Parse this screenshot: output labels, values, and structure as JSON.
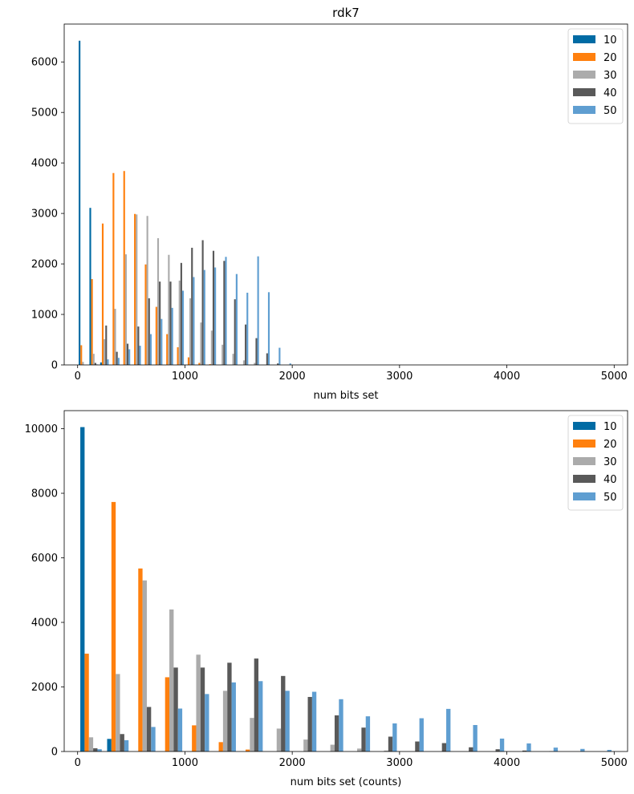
{
  "figure_title": "rdk7",
  "chart_data": [
    {
      "type": "bar",
      "title": "rdk7",
      "xlabel": "num bits set",
      "ylabel": "",
      "xlim": [
        -125,
        5125
      ],
      "ylim": [
        0,
        6750
      ],
      "xticks": [
        0,
        1000,
        2000,
        3000,
        4000,
        5000
      ],
      "yticks": [
        0,
        1000,
        2000,
        3000,
        4000,
        5000,
        6000
      ],
      "legend_position": "top-right",
      "bin_width": 100,
      "bin_starts": [
        0,
        100,
        200,
        300,
        400,
        500,
        600,
        700,
        800,
        900,
        1000,
        1100,
        1200,
        1300,
        1400,
        1500,
        1600,
        1700,
        1800,
        1900
      ],
      "series": [
        {
          "name": "10",
          "color": "#006BA4",
          "values": [
            6420,
            3110,
            50,
            0,
            0,
            0,
            0,
            0,
            0,
            0,
            0,
            0,
            0,
            0,
            0,
            0,
            0,
            0,
            0,
            0
          ]
        },
        {
          "name": "20",
          "color": "#FF800E",
          "values": [
            390,
            1700,
            2800,
            3800,
            3840,
            2990,
            1990,
            1150,
            610,
            350,
            150,
            40,
            15,
            0,
            0,
            0,
            0,
            0,
            0,
            0
          ]
        },
        {
          "name": "30",
          "color": "#ABABAB",
          "values": [
            60,
            220,
            510,
            1110,
            2190,
            2980,
            2950,
            2510,
            2180,
            1670,
            1320,
            840,
            680,
            400,
            220,
            90,
            40,
            0,
            0,
            0
          ]
        },
        {
          "name": "40",
          "color": "#595959",
          "values": [
            0,
            40,
            780,
            260,
            420,
            760,
            1320,
            1650,
            1650,
            2020,
            2320,
            2470,
            2260,
            2060,
            1300,
            800,
            530,
            230,
            30,
            0
          ]
        },
        {
          "name": "50",
          "color": "#5F9ED1",
          "values": [
            0,
            10,
            110,
            140,
            310,
            380,
            610,
            910,
            1130,
            1470,
            1740,
            1880,
            1930,
            2140,
            1800,
            1430,
            2150,
            1440,
            340,
            30
          ]
        }
      ]
    },
    {
      "type": "bar",
      "title": "",
      "xlabel": "num bits set (counts)",
      "ylabel": "",
      "xlim": [
        -125,
        5125
      ],
      "ylim": [
        0,
        10560
      ],
      "xticks": [
        0,
        1000,
        2000,
        3000,
        4000,
        5000
      ],
      "yticks": [
        0,
        2000,
        4000,
        6000,
        8000,
        10000
      ],
      "legend_position": "top-right",
      "bin_width": 250,
      "bin_starts": [
        0,
        250,
        500,
        750,
        1000,
        1250,
        1500,
        1750,
        2000,
        2250,
        2500,
        2750,
        3000,
        3250,
        3500,
        3750,
        4000,
        4250,
        4500,
        4750
      ],
      "series": [
        {
          "name": "10",
          "color": "#006BA4",
          "values": [
            10050,
            390,
            0,
            0,
            0,
            0,
            0,
            0,
            0,
            0,
            0,
            0,
            0,
            0,
            0,
            0,
            0,
            0,
            0,
            0
          ]
        },
        {
          "name": "20",
          "color": "#FF800E",
          "values": [
            3030,
            7730,
            5670,
            2300,
            810,
            290,
            60,
            0,
            0,
            0,
            0,
            0,
            0,
            0,
            0,
            0,
            0,
            0,
            0,
            0
          ]
        },
        {
          "name": "30",
          "color": "#ABABAB",
          "values": [
            440,
            2400,
            5300,
            4400,
            3000,
            1880,
            1040,
            710,
            370,
            210,
            90,
            30,
            0,
            0,
            0,
            0,
            0,
            0,
            0,
            0
          ]
        },
        {
          "name": "40",
          "color": "#595959",
          "values": [
            100,
            540,
            1380,
            2600,
            2600,
            2750,
            2880,
            2340,
            1690,
            1120,
            740,
            460,
            310,
            260,
            130,
            70,
            30,
            10,
            0,
            0
          ]
        },
        {
          "name": "50",
          "color": "#5F9ED1",
          "values": [
            70,
            350,
            760,
            1330,
            1780,
            2140,
            2180,
            1880,
            1850,
            1620,
            1090,
            870,
            1030,
            1320,
            820,
            400,
            250,
            120,
            80,
            50
          ]
        }
      ]
    }
  ]
}
